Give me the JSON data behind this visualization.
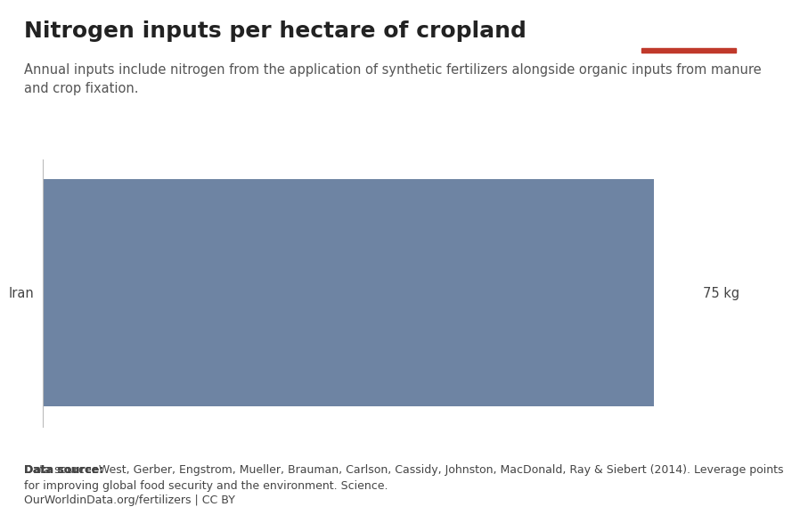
{
  "title": "Nitrogen inputs per hectare of cropland",
  "subtitle": "Annual inputs include nitrogen from the application of synthetic fertilizers alongside organic inputs from manure\nand crop fixation.",
  "bar_label": "Iran",
  "bar_value_label": "75 kg",
  "bar_color": "#6e84a3",
  "bar_value": 75,
  "x_max": 80,
  "background_color": "#ffffff",
  "data_source_bold": "Data source:",
  "data_source_rest": " West, Gerber, Engstrom, Mueller, Brauman, Carlson, Cassidy, Johnston, MacDonald, Ray & Siebert (2014). Leverage points\nfor improving global food security and the environment. Science.",
  "data_source_url": "OurWorldinData.org/fertilizers | CC BY",
  "owid_box_color": "#1a3a5c",
  "owid_red_color": "#c0392b",
  "title_fontsize": 18,
  "subtitle_fontsize": 10.5,
  "label_fontsize": 10.5,
  "footer_fontsize": 9
}
